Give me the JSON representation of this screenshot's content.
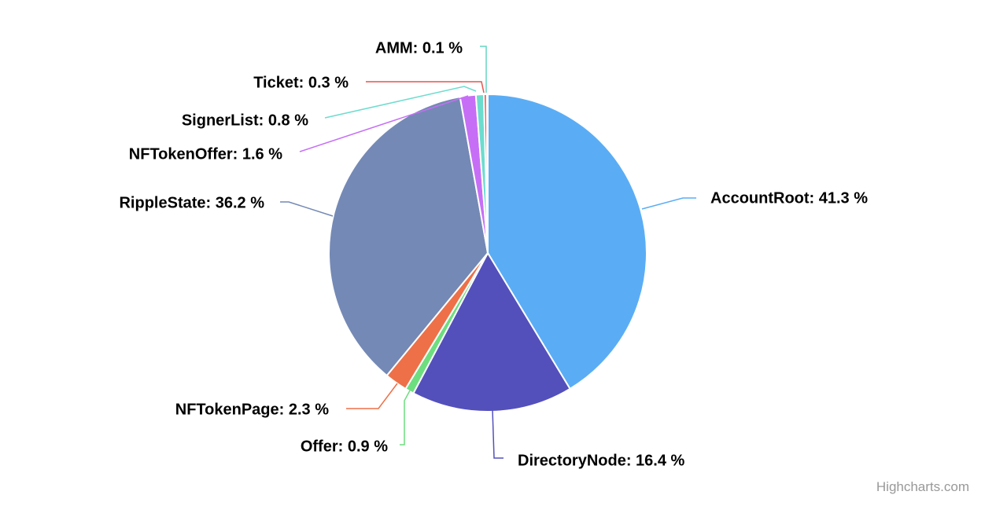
{
  "credits": "Highcharts.com",
  "chart_data": {
    "type": "pie",
    "title": "",
    "label_format": "{name}: {value} %",
    "slices": [
      {
        "name": "AccountRoot",
        "value": 41.3,
        "color": "#5aadf5"
      },
      {
        "name": "DirectoryNode",
        "value": 16.4,
        "color": "#5350bc"
      },
      {
        "name": "Offer",
        "value": 0.9,
        "color": "#6dde7f"
      },
      {
        "name": "NFTokenPage",
        "value": 2.3,
        "color": "#ee7048"
      },
      {
        "name": "RippleState",
        "value": 36.2,
        "color": "#7489b5"
      },
      {
        "name": "NFTokenOffer",
        "value": 1.6,
        "color": "#c76ef6"
      },
      {
        "name": "SignerList",
        "value": 0.8,
        "color": "#6ddccf"
      },
      {
        "name": "Ticket",
        "value": 0.3,
        "color": "#e6544f"
      },
      {
        "name": "AMM",
        "value": 0.1,
        "color": "#64d6c0"
      }
    ]
  }
}
